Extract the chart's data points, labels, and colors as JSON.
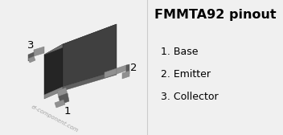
{
  "title": "FMMTA92 pinout",
  "title_fontsize": 11.5,
  "pin_labels": [
    "1. Base",
    "2. Emitter",
    "3. Collector"
  ],
  "pin_numbers": [
    "1",
    "2",
    "3"
  ],
  "watermark": "el-component.com",
  "background_color": "#f0f0f0",
  "body_dark": "#1a1a1a",
  "body_mid": "#3a3a3a",
  "body_top": "#6a6a6a",
  "body_edge": "#8a8a8a",
  "pin_dark": "#5a5a5a",
  "pin_light": "#909090",
  "pin_edge": "#aaaaaa",
  "text_color": "#000000",
  "watermark_color": "#999999",
  "label_fontsize": 9,
  "pin_num_fontsize": 9.5,
  "divider_color": "#cccccc"
}
